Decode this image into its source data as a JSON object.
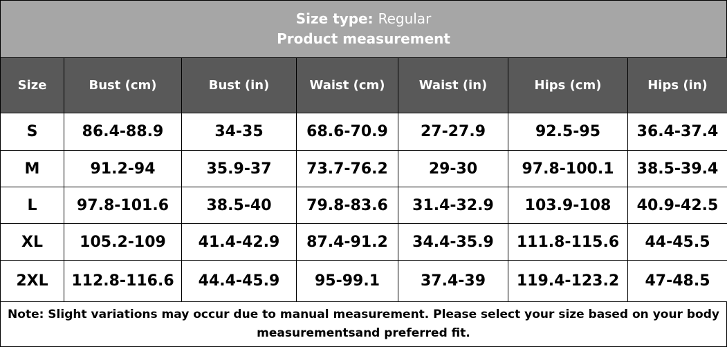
{
  "title": {
    "label": "Size type:",
    "value": "Regular",
    "subtitle": "Product measurement"
  },
  "table": {
    "header": [
      "Size",
      "Bust (cm)",
      "Bust (in)",
      "Waist (cm)",
      "Waist (in)",
      "Hips (cm)",
      "Hips (in)"
    ],
    "rows": [
      [
        "S",
        "86.4-88.9",
        "34-35",
        "68.6-70.9",
        "27-27.9",
        "92.5-95",
        "36.4-37.4"
      ],
      [
        "M",
        "91.2-94",
        "35.9-37",
        "73.7-76.2",
        "29-30",
        "97.8-100.1",
        "38.5-39.4"
      ],
      [
        "L",
        "97.8-101.6",
        "38.5-40",
        "79.8-83.6",
        "31.4-32.9",
        "103.9-108",
        "40.9-42.5"
      ],
      [
        "XL",
        "105.2-109",
        "41.4-42.9",
        "87.4-91.2",
        "34.4-35.9",
        "111.8-115.6",
        "44-45.5"
      ],
      [
        "2XL",
        "112.8-116.6",
        "44.4-45.9",
        "95-99.1",
        "37.4-39",
        "119.4-123.2",
        "47-48.5"
      ]
    ]
  },
  "note": "Note: Slight variations may occur due to manual measurement. Please select your size based on your body measurementsand preferred fit."
}
